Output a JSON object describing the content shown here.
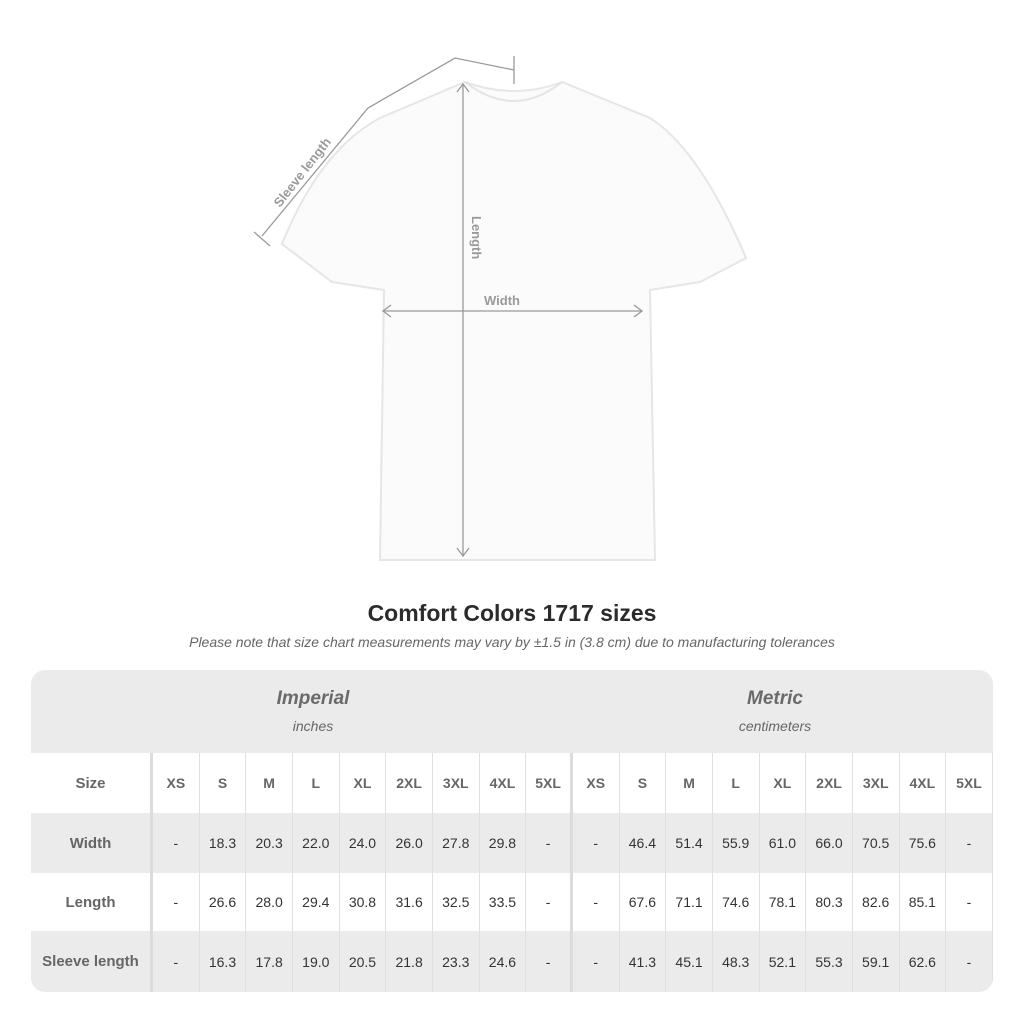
{
  "diagram": {
    "sleeve_label": "Sleeve length",
    "length_label": "Length",
    "width_label": "Width"
  },
  "title": "Comfort Colors 1717 sizes",
  "note": "Please note that size chart measurements may vary by ±1.5 in (3.8 cm) due to manufacturing tolerances",
  "imperial": {
    "name": "Imperial",
    "unit": "inches"
  },
  "metric": {
    "name": "Metric",
    "unit": "centimeters"
  },
  "size_header": "Size",
  "sizes": [
    "XS",
    "S",
    "M",
    "L",
    "XL",
    "2XL",
    "3XL",
    "4XL",
    "5XL"
  ],
  "rows": [
    {
      "label": "Width",
      "imperial": [
        "-",
        "18.3",
        "20.3",
        "22.0",
        "24.0",
        "26.0",
        "27.8",
        "29.8",
        "-"
      ],
      "metric": [
        "-",
        "46.4",
        "51.4",
        "55.9",
        "61.0",
        "66.0",
        "70.5",
        "75.6",
        "-"
      ]
    },
    {
      "label": "Length",
      "imperial": [
        "-",
        "26.6",
        "28.0",
        "29.4",
        "30.8",
        "31.6",
        "32.5",
        "33.5",
        "-"
      ],
      "metric": [
        "-",
        "67.6",
        "71.1",
        "74.6",
        "78.1",
        "80.3",
        "82.6",
        "85.1",
        "-"
      ]
    },
    {
      "label": "Sleeve length",
      "imperial": [
        "-",
        "16.3",
        "17.8",
        "19.0",
        "20.5",
        "21.8",
        "23.3",
        "24.6",
        "-"
      ],
      "metric": [
        "-",
        "41.3",
        "45.1",
        "48.3",
        "52.1",
        "55.3",
        "59.1",
        "62.6",
        "-"
      ]
    }
  ]
}
